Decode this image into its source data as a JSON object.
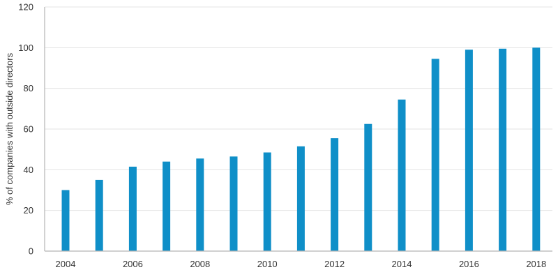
{
  "chart_data": {
    "type": "bar",
    "title": "",
    "xlabel": "",
    "ylabel": "% of companies with outside directors",
    "ylim": [
      0,
      120
    ],
    "yticks": [
      0,
      20,
      40,
      60,
      80,
      100,
      120
    ],
    "categories": [
      "2004",
      "2005",
      "2006",
      "2007",
      "2008",
      "2009",
      "2010",
      "2011",
      "2012",
      "2013",
      "2014",
      "2015",
      "2016",
      "2017",
      "2018"
    ],
    "x_tick_labels": [
      "2004",
      "2006",
      "2008",
      "2010",
      "2012",
      "2014",
      "2016",
      "2018"
    ],
    "values": [
      30,
      35,
      41.5,
      44,
      45.5,
      46.5,
      48.5,
      51.5,
      55.5,
      62.5,
      74.5,
      94.5,
      99,
      99.5,
      100
    ],
    "bar_color": "#0f8fc8",
    "grid": true,
    "legend": "none"
  }
}
